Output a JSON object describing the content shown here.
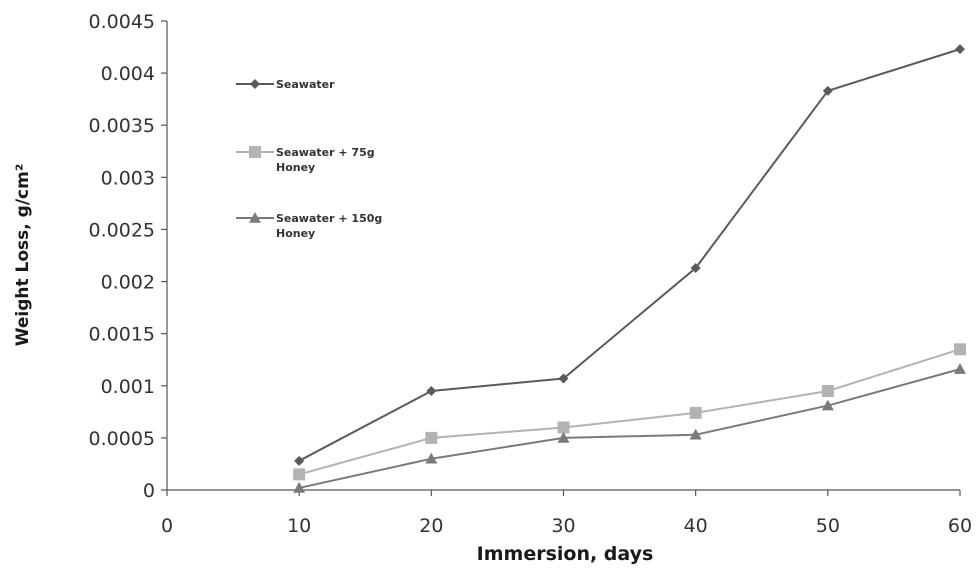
{
  "chart_data": {
    "type": "line",
    "xlabel": "Immersion, days",
    "ylabel": "Weight Loss, g/cm²",
    "xlim": [
      0,
      60
    ],
    "ylim": [
      0,
      0.0045
    ],
    "x_ticks": [
      "0",
      "10",
      "20",
      "30",
      "40",
      "50",
      "60"
    ],
    "y_ticks": [
      "0",
      "0.0005",
      "0.001",
      "0.0015",
      "0.002",
      "0.0025",
      "0.003",
      "0.0035",
      "0.004",
      "0.0045"
    ],
    "grid": false,
    "legend_position": "top-left",
    "x": [
      10,
      20,
      30,
      40,
      50,
      60
    ],
    "series": [
      {
        "name": "Seawater",
        "lines": [
          "Seawater"
        ],
        "marker": "diamond",
        "color": "#5a5a5a",
        "values": [
          0.00028,
          0.00095,
          0.00107,
          0.00213,
          0.00383,
          0.00423
        ]
      },
      {
        "name": "Seawater + 75g Honey",
        "lines": [
          "Seawater + 75g",
          "Honey"
        ],
        "marker": "square",
        "color": "#b3b3b3",
        "values": [
          0.00015,
          0.0005,
          0.0006,
          0.00074,
          0.00095,
          0.00135
        ]
      },
      {
        "name": "Seawater + 150g Honey",
        "lines": [
          "Seawater + 150g",
          "Honey"
        ],
        "marker": "triangle",
        "color": "#7a7a7a",
        "values": [
          2e-05,
          0.0003,
          0.0005,
          0.00053,
          0.00081,
          0.00116
        ]
      }
    ]
  }
}
